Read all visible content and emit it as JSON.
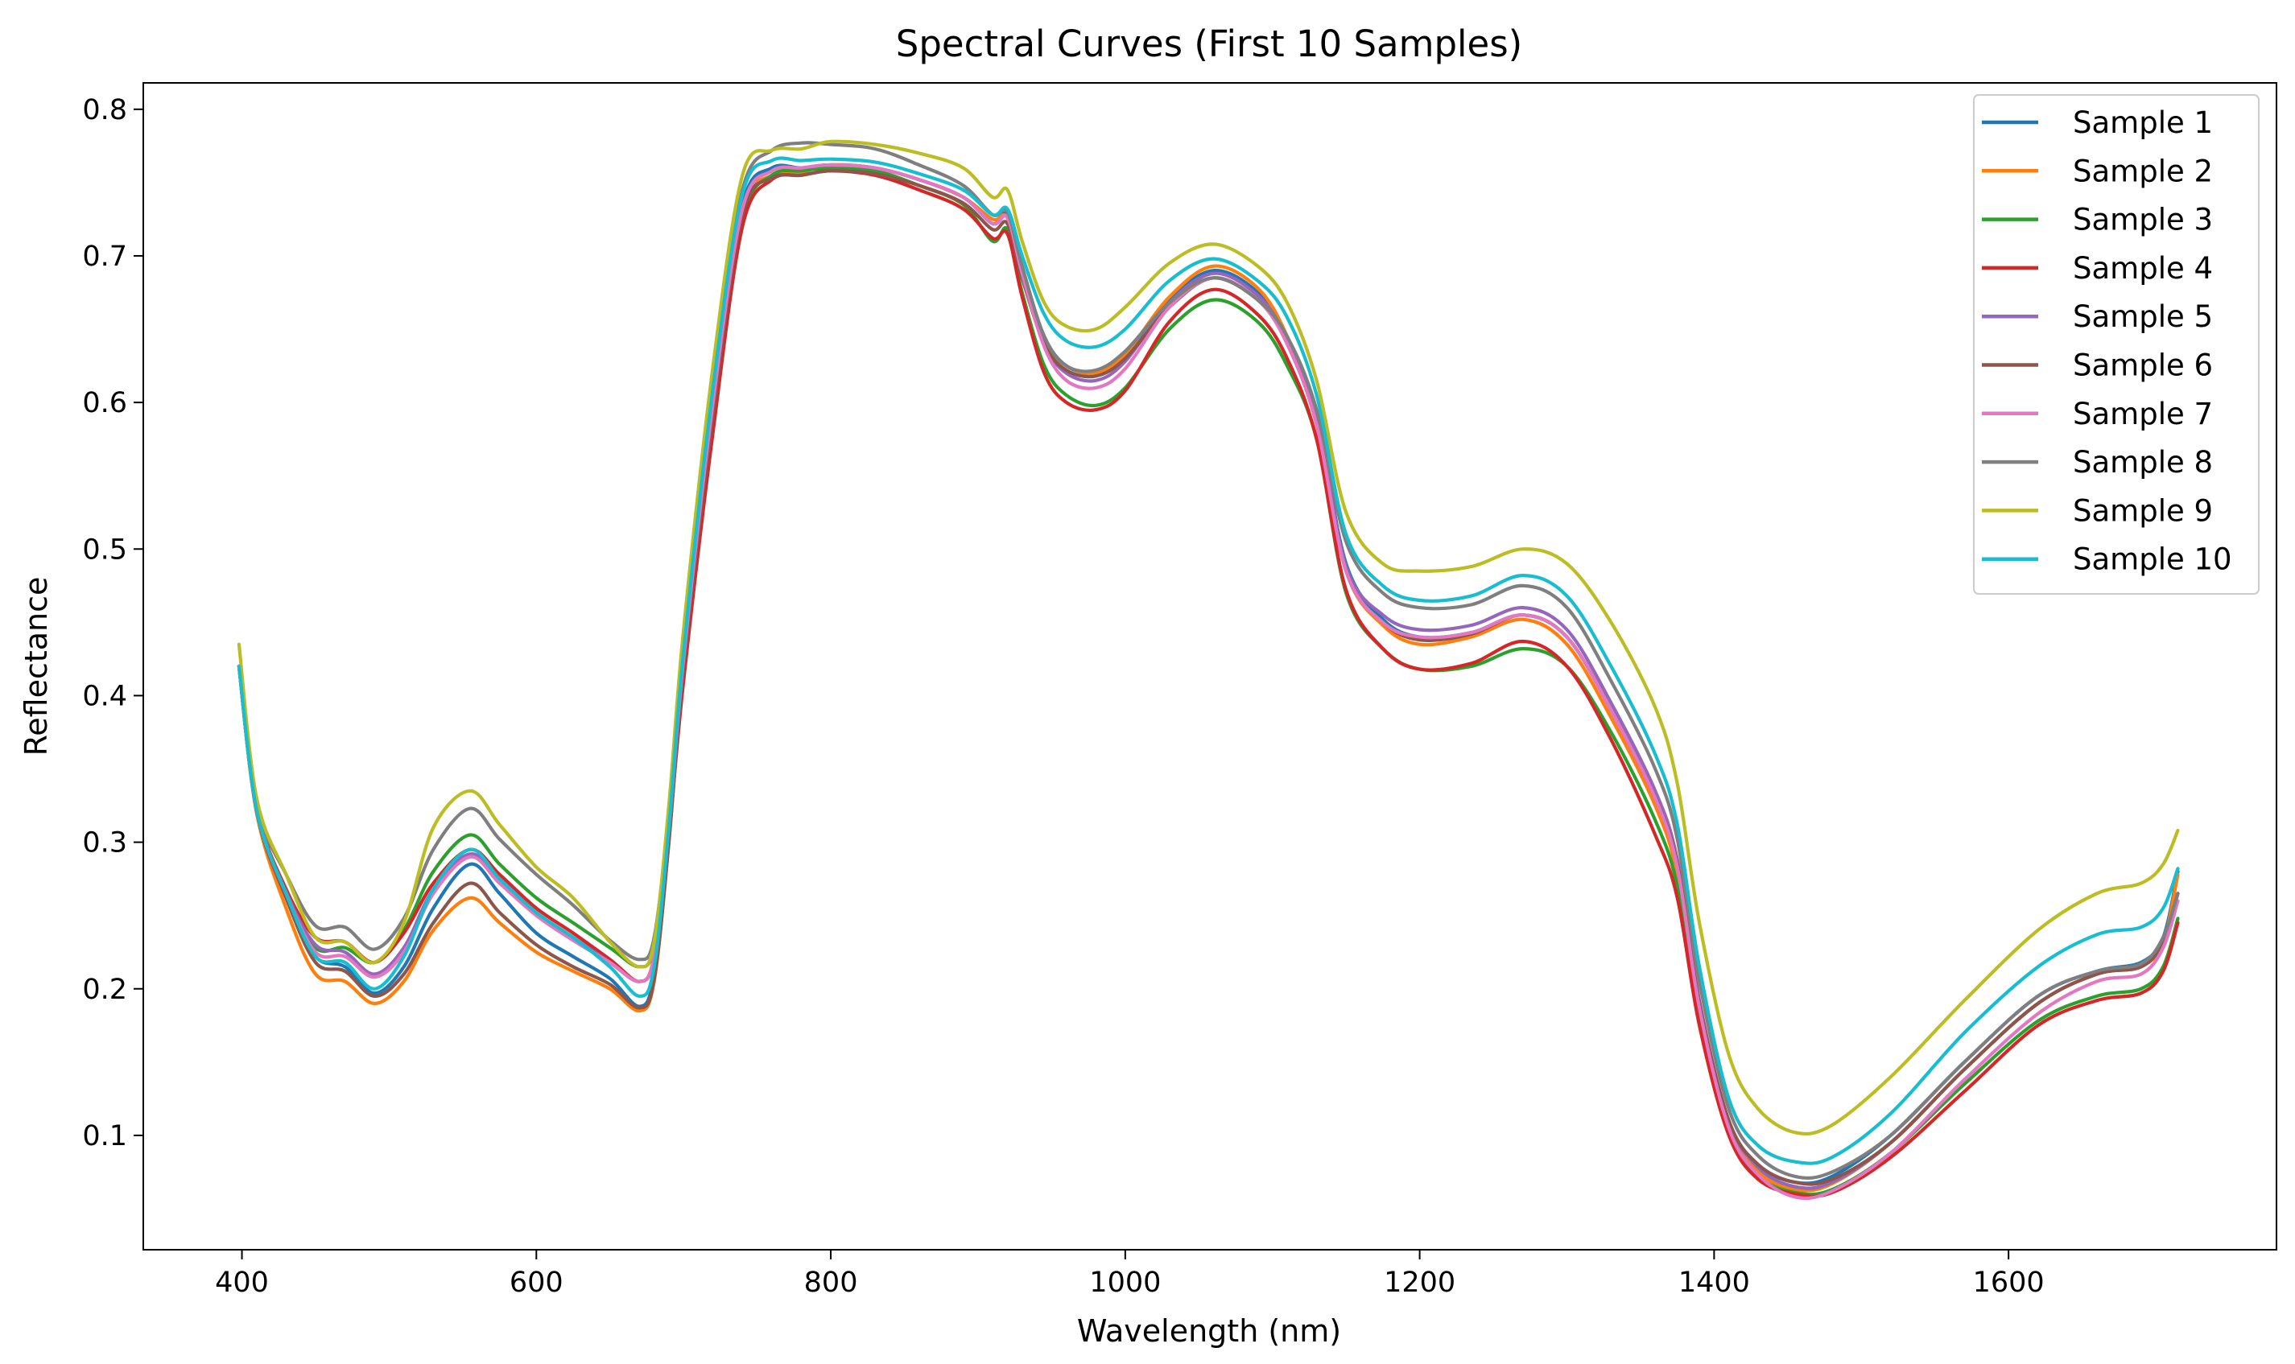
{
  "chart_data": {
    "type": "line",
    "title": "Spectral Curves (First 10 Samples)",
    "xlabel": "Wavelength (nm)",
    "ylabel": "Reflectance",
    "xlim": [
      333,
      1782
    ],
    "ylim": [
      0.022,
      0.818
    ],
    "xticks": [
      400,
      600,
      800,
      1000,
      1200,
      1400,
      1600
    ],
    "xtick_labels": [
      "400",
      "600",
      "800",
      "1000",
      "1200",
      "1400",
      "1600"
    ],
    "yticks": [
      0.1,
      0.2,
      0.3,
      0.4,
      0.5,
      0.6,
      0.7,
      0.8
    ],
    "ytick_labels": [
      "0.1",
      "0.2",
      "0.3",
      "0.4",
      "0.5",
      "0.6",
      "0.7",
      "0.8"
    ],
    "grid": false,
    "legend": "top-right",
    "x": [
      398,
      410,
      430,
      450,
      470,
      490,
      510,
      530,
      555,
      575,
      600,
      625,
      650,
      670,
      680,
      690,
      700,
      720,
      740,
      760,
      780,
      800,
      830,
      860,
      890,
      910,
      920,
      930,
      945,
      960,
      980,
      1000,
      1030,
      1060,
      1090,
      1110,
      1130,
      1150,
      1175,
      1200,
      1235,
      1270,
      1300,
      1330,
      1360,
      1375,
      1390,
      1410,
      1430,
      1455,
      1480,
      1520,
      1570,
      1620,
      1660,
      1690,
      1705,
      1715
    ],
    "series": [
      {
        "name": "Sample 1",
        "color": "#1f77b4",
        "values": [
          0.42,
          0.322,
          0.262,
          0.222,
          0.215,
          0.197,
          0.215,
          0.255,
          0.285,
          0.265,
          0.238,
          0.222,
          0.207,
          0.188,
          0.21,
          0.31,
          0.43,
          0.605,
          0.735,
          0.76,
          0.76,
          0.762,
          0.76,
          0.752,
          0.74,
          0.722,
          0.728,
          0.69,
          0.645,
          0.625,
          0.62,
          0.632,
          0.67,
          0.69,
          0.675,
          0.645,
          0.59,
          0.49,
          0.452,
          0.44,
          0.443,
          0.455,
          0.44,
          0.39,
          0.33,
          0.285,
          0.19,
          0.11,
          0.08,
          0.068,
          0.072,
          0.1,
          0.15,
          0.195,
          0.212,
          0.218,
          0.235,
          0.28
        ]
      },
      {
        "name": "Sample 2",
        "color": "#ff7f0e",
        "values": [
          0.42,
          0.32,
          0.255,
          0.21,
          0.205,
          0.19,
          0.205,
          0.24,
          0.262,
          0.245,
          0.225,
          0.212,
          0.2,
          0.185,
          0.205,
          0.3,
          0.42,
          0.598,
          0.73,
          0.755,
          0.757,
          0.762,
          0.76,
          0.752,
          0.74,
          0.725,
          0.726,
          0.688,
          0.642,
          0.625,
          0.62,
          0.633,
          0.672,
          0.693,
          0.678,
          0.645,
          0.588,
          0.485,
          0.448,
          0.435,
          0.44,
          0.452,
          0.435,
          0.385,
          0.325,
          0.278,
          0.185,
          0.105,
          0.075,
          0.063,
          0.067,
          0.095,
          0.145,
          0.19,
          0.21,
          0.215,
          0.232,
          0.278
        ]
      },
      {
        "name": "Sample 3",
        "color": "#2ca02c",
        "values": [
          0.42,
          0.322,
          0.265,
          0.228,
          0.228,
          0.218,
          0.24,
          0.28,
          0.305,
          0.285,
          0.262,
          0.245,
          0.228,
          0.215,
          0.23,
          0.315,
          0.42,
          0.59,
          0.725,
          0.755,
          0.758,
          0.76,
          0.758,
          0.748,
          0.735,
          0.71,
          0.718,
          0.675,
          0.625,
          0.605,
          0.598,
          0.61,
          0.65,
          0.67,
          0.655,
          0.625,
          0.575,
          0.47,
          0.432,
          0.418,
          0.42,
          0.432,
          0.42,
          0.375,
          0.315,
          0.27,
          0.18,
          0.102,
          0.072,
          0.061,
          0.063,
          0.088,
          0.135,
          0.178,
          0.195,
          0.2,
          0.215,
          0.248
        ]
      },
      {
        "name": "Sample 4",
        "color": "#d62728",
        "values": [
          0.42,
          0.323,
          0.268,
          0.235,
          0.232,
          0.218,
          0.238,
          0.272,
          0.295,
          0.278,
          0.255,
          0.238,
          0.22,
          0.205,
          0.222,
          0.305,
          0.41,
          0.58,
          0.72,
          0.752,
          0.755,
          0.758,
          0.755,
          0.745,
          0.732,
          0.712,
          0.715,
          0.672,
          0.62,
          0.6,
          0.595,
          0.608,
          0.655,
          0.677,
          0.66,
          0.63,
          0.575,
          0.472,
          0.432,
          0.418,
          0.422,
          0.437,
          0.42,
          0.37,
          0.305,
          0.262,
          0.175,
          0.1,
          0.07,
          0.06,
          0.061,
          0.085,
          0.13,
          0.175,
          0.192,
          0.197,
          0.212,
          0.245
        ]
      },
      {
        "name": "Sample 5",
        "color": "#9467bd",
        "values": [
          0.42,
          0.322,
          0.266,
          0.23,
          0.225,
          0.21,
          0.228,
          0.268,
          0.292,
          0.275,
          0.252,
          0.235,
          0.218,
          0.205,
          0.222,
          0.31,
          0.425,
          0.6,
          0.732,
          0.758,
          0.76,
          0.762,
          0.76,
          0.752,
          0.74,
          0.722,
          0.726,
          0.688,
          0.64,
          0.62,
          0.615,
          0.628,
          0.668,
          0.688,
          0.673,
          0.643,
          0.588,
          0.488,
          0.455,
          0.445,
          0.448,
          0.46,
          0.445,
          0.395,
          0.335,
          0.288,
          0.192,
          0.11,
          0.078,
          0.065,
          0.068,
          0.095,
          0.145,
          0.19,
          0.21,
          0.215,
          0.232,
          0.265
        ]
      },
      {
        "name": "Sample 6",
        "color": "#8c564b",
        "values": [
          0.42,
          0.321,
          0.262,
          0.218,
          0.212,
          0.195,
          0.21,
          0.245,
          0.272,
          0.252,
          0.23,
          0.215,
          0.203,
          0.187,
          0.206,
          0.3,
          0.418,
          0.592,
          0.728,
          0.753,
          0.755,
          0.758,
          0.756,
          0.748,
          0.736,
          0.718,
          0.722,
          0.685,
          0.64,
          0.622,
          0.618,
          0.63,
          0.665,
          0.685,
          0.67,
          0.64,
          0.585,
          0.485,
          0.45,
          0.438,
          0.442,
          0.455,
          0.44,
          0.39,
          0.33,
          0.285,
          0.19,
          0.11,
          0.08,
          0.068,
          0.07,
          0.095,
          0.145,
          0.19,
          0.21,
          0.215,
          0.232,
          0.265
        ]
      },
      {
        "name": "Sample 7",
        "color": "#e377c2",
        "values": [
          0.42,
          0.322,
          0.265,
          0.225,
          0.222,
          0.208,
          0.225,
          0.265,
          0.29,
          0.272,
          0.25,
          0.233,
          0.218,
          0.205,
          0.222,
          0.31,
          0.425,
          0.6,
          0.732,
          0.758,
          0.76,
          0.762,
          0.76,
          0.752,
          0.74,
          0.722,
          0.726,
          0.688,
          0.638,
          0.615,
          0.61,
          0.623,
          0.665,
          0.685,
          0.67,
          0.64,
          0.585,
          0.485,
          0.45,
          0.44,
          0.443,
          0.455,
          0.44,
          0.39,
          0.33,
          0.283,
          0.187,
          0.105,
          0.073,
          0.058,
          0.062,
          0.088,
          0.138,
          0.183,
          0.205,
          0.21,
          0.228,
          0.26
        ]
      },
      {
        "name": "Sample 8",
        "color": "#7f7f7f",
        "values": [
          0.42,
          0.325,
          0.278,
          0.243,
          0.242,
          0.227,
          0.248,
          0.295,
          0.323,
          0.302,
          0.278,
          0.257,
          0.233,
          0.22,
          0.235,
          0.32,
          0.435,
          0.615,
          0.745,
          0.772,
          0.777,
          0.776,
          0.773,
          0.762,
          0.748,
          0.728,
          0.73,
          0.693,
          0.645,
          0.625,
          0.622,
          0.635,
          0.668,
          0.685,
          0.67,
          0.645,
          0.595,
          0.505,
          0.47,
          0.46,
          0.462,
          0.475,
          0.46,
          0.41,
          0.35,
          0.302,
          0.205,
          0.118,
          0.086,
          0.072,
          0.075,
          0.1,
          0.15,
          0.195,
          0.212,
          0.217,
          0.235,
          0.265
        ]
      },
      {
        "name": "Sample 9",
        "color": "#bcbd22",
        "values": [
          0.435,
          0.33,
          0.278,
          0.235,
          0.232,
          0.218,
          0.245,
          0.31,
          0.335,
          0.312,
          0.283,
          0.262,
          0.232,
          0.215,
          0.232,
          0.325,
          0.445,
          0.625,
          0.755,
          0.772,
          0.773,
          0.778,
          0.776,
          0.77,
          0.76,
          0.74,
          0.745,
          0.71,
          0.668,
          0.652,
          0.65,
          0.665,
          0.695,
          0.708,
          0.693,
          0.668,
          0.615,
          0.525,
          0.49,
          0.485,
          0.488,
          0.5,
          0.49,
          0.45,
          0.392,
          0.34,
          0.245,
          0.155,
          0.118,
          0.102,
          0.107,
          0.14,
          0.192,
          0.24,
          0.265,
          0.272,
          0.285,
          0.308
        ]
      },
      {
        "name": "Sample 10",
        "color": "#17becf",
        "values": [
          0.42,
          0.322,
          0.265,
          0.222,
          0.218,
          0.2,
          0.222,
          0.268,
          0.295,
          0.275,
          0.252,
          0.235,
          0.215,
          0.195,
          0.215,
          0.31,
          0.43,
          0.61,
          0.742,
          0.765,
          0.765,
          0.766,
          0.764,
          0.756,
          0.745,
          0.728,
          0.732,
          0.7,
          0.66,
          0.642,
          0.638,
          0.65,
          0.683,
          0.698,
          0.683,
          0.658,
          0.605,
          0.51,
          0.475,
          0.465,
          0.468,
          0.482,
          0.468,
          0.42,
          0.36,
          0.312,
          0.215,
          0.125,
          0.093,
          0.082,
          0.085,
          0.115,
          0.17,
          0.215,
          0.237,
          0.242,
          0.255,
          0.282
        ]
      }
    ]
  }
}
